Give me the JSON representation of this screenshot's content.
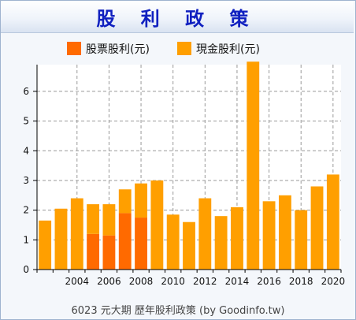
{
  "title": "股 利 政 策",
  "footer": "6023 元大期 歷年股利政策 (by Goodinfo.tw)",
  "colors": {
    "stock_dividend": "#ff6a00",
    "cash_dividend": "#ff9f00",
    "grid": "#999999",
    "title": "#1020c0"
  },
  "chart_data": {
    "type": "bar",
    "stacked": true,
    "categories": [
      "2002",
      "2003",
      "2004",
      "2005",
      "2006",
      "2007",
      "2008",
      "2009",
      "2010",
      "2011",
      "2012",
      "2013",
      "2014",
      "2015",
      "2016",
      "2017",
      "2018",
      "2019",
      "2020"
    ],
    "series": [
      {
        "name": "股票股利(元)",
        "color": "#ff6a00",
        "values": [
          0,
          0,
          0,
          1.2,
          1.15,
          1.9,
          1.75,
          0,
          0,
          0,
          0,
          0,
          0,
          0,
          0,
          0,
          0,
          0,
          0
        ]
      },
      {
        "name": "現金股利(元)",
        "color": "#ff9f00",
        "values": [
          1.65,
          2.05,
          2.4,
          1.0,
          1.05,
          0.8,
          1.15,
          3.0,
          1.85,
          1.6,
          2.4,
          1.8,
          2.1,
          7.0,
          2.3,
          2.5,
          2.0,
          2.8,
          3.2
        ]
      }
    ],
    "x_tick_labels": [
      "2004",
      "2006",
      "2008",
      "2010",
      "2012",
      "2014",
      "2016",
      "2018",
      "2020"
    ],
    "y_ticks": [
      0,
      1,
      2,
      3,
      4,
      5,
      6
    ],
    "ylim": [
      0,
      6.9
    ],
    "grid": true,
    "legend_position": "top"
  }
}
